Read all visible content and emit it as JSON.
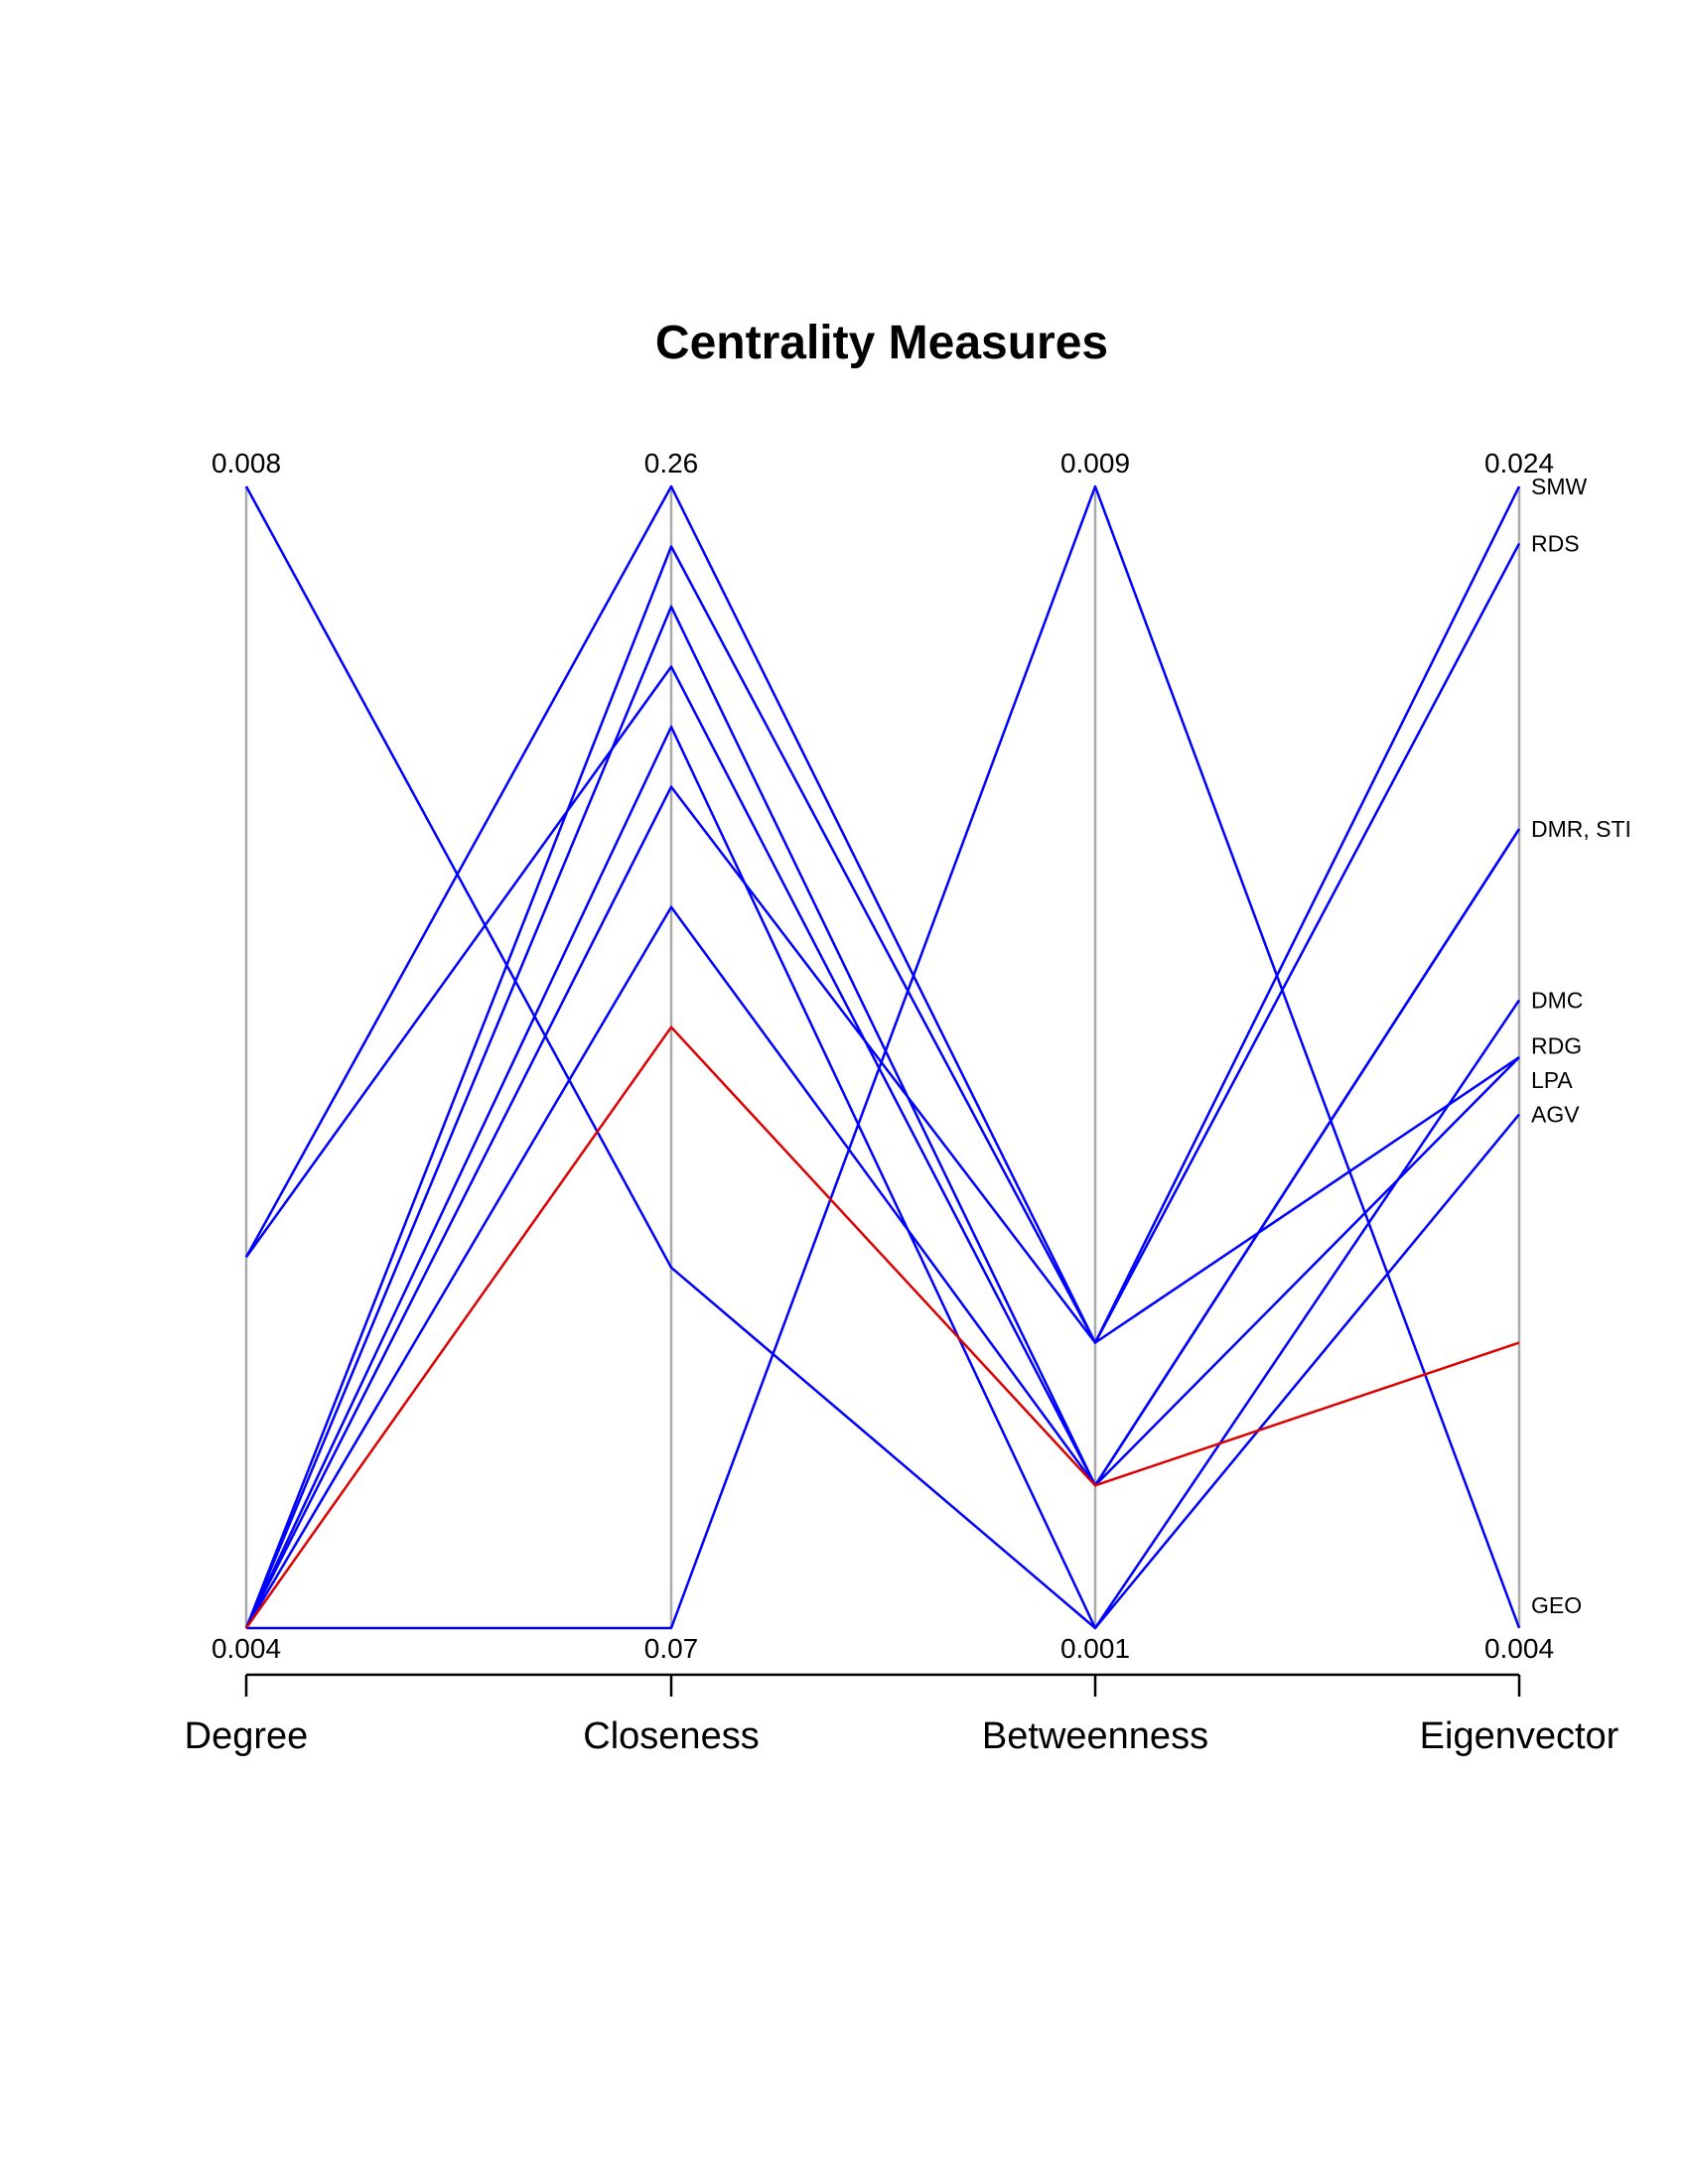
{
  "chart_data": {
    "type": "parallel_coordinates",
    "title": "Centrality Measures",
    "axes": [
      {
        "name": "Degree",
        "min": 0.004,
        "max": 0.008,
        "min_label": "0.004",
        "max_label": "0.008"
      },
      {
        "name": "Closeness",
        "min": 0.07,
        "max": 0.26,
        "min_label": "0.07",
        "max_label": "0.26"
      },
      {
        "name": "Betweenness",
        "min": 0.001,
        "max": 0.009,
        "min_label": "0.001",
        "max_label": "0.009"
      },
      {
        "name": "Eigenvector",
        "min": 0.004,
        "max": 0.024,
        "min_label": "0.004",
        "max_label": "0.024"
      }
    ],
    "series": [
      {
        "name": "SMW",
        "color": "#0000ff",
        "values": [
          0.0053,
          0.26,
          0.003,
          0.024
        ]
      },
      {
        "name": "RDS",
        "color": "#0000ff",
        "values": [
          0.004,
          0.25,
          0.003,
          0.023
        ]
      },
      {
        "name": "DMR",
        "color": "#0000ff",
        "values": [
          0.0053,
          0.23,
          0.002,
          0.018
        ]
      },
      {
        "name": "STI",
        "color": "#0000ff",
        "values": [
          0.004,
          0.24,
          0.002,
          0.018
        ]
      },
      {
        "name": "DMC",
        "color": "#0000ff",
        "values": [
          0.004,
          0.22,
          0.001,
          0.015
        ]
      },
      {
        "name": "RDG",
        "color": "#0000ff",
        "values": [
          0.004,
          0.21,
          0.003,
          0.014
        ]
      },
      {
        "name": "LPA",
        "color": "#0000ff",
        "values": [
          0.004,
          0.19,
          0.002,
          0.014
        ]
      },
      {
        "name": "AGV",
        "color": "#0000ff",
        "values": [
          0.008,
          0.13,
          0.001,
          0.013
        ]
      },
      {
        "name": "GEO",
        "color": "#0000ff",
        "values": [
          0.004,
          0.07,
          0.009,
          0.004
        ]
      },
      {
        "name": "",
        "color": "#dd0000",
        "values": [
          0.004,
          0.17,
          0.002,
          0.009
        ]
      }
    ],
    "end_labels": [
      {
        "text": "SMW",
        "value": 0.024
      },
      {
        "text": "RDS",
        "value": 0.023
      },
      {
        "text": "DMR, STI",
        "value": 0.018
      },
      {
        "text": "DMC",
        "value": 0.015
      },
      {
        "text": "RDG",
        "value": 0.0142
      },
      {
        "text": "LPA",
        "value": 0.0136
      },
      {
        "text": "AGV",
        "value": 0.013
      },
      {
        "text": "GEO",
        "value": 0.0044
      }
    ],
    "axis_line_color": "#aaaaaa"
  }
}
